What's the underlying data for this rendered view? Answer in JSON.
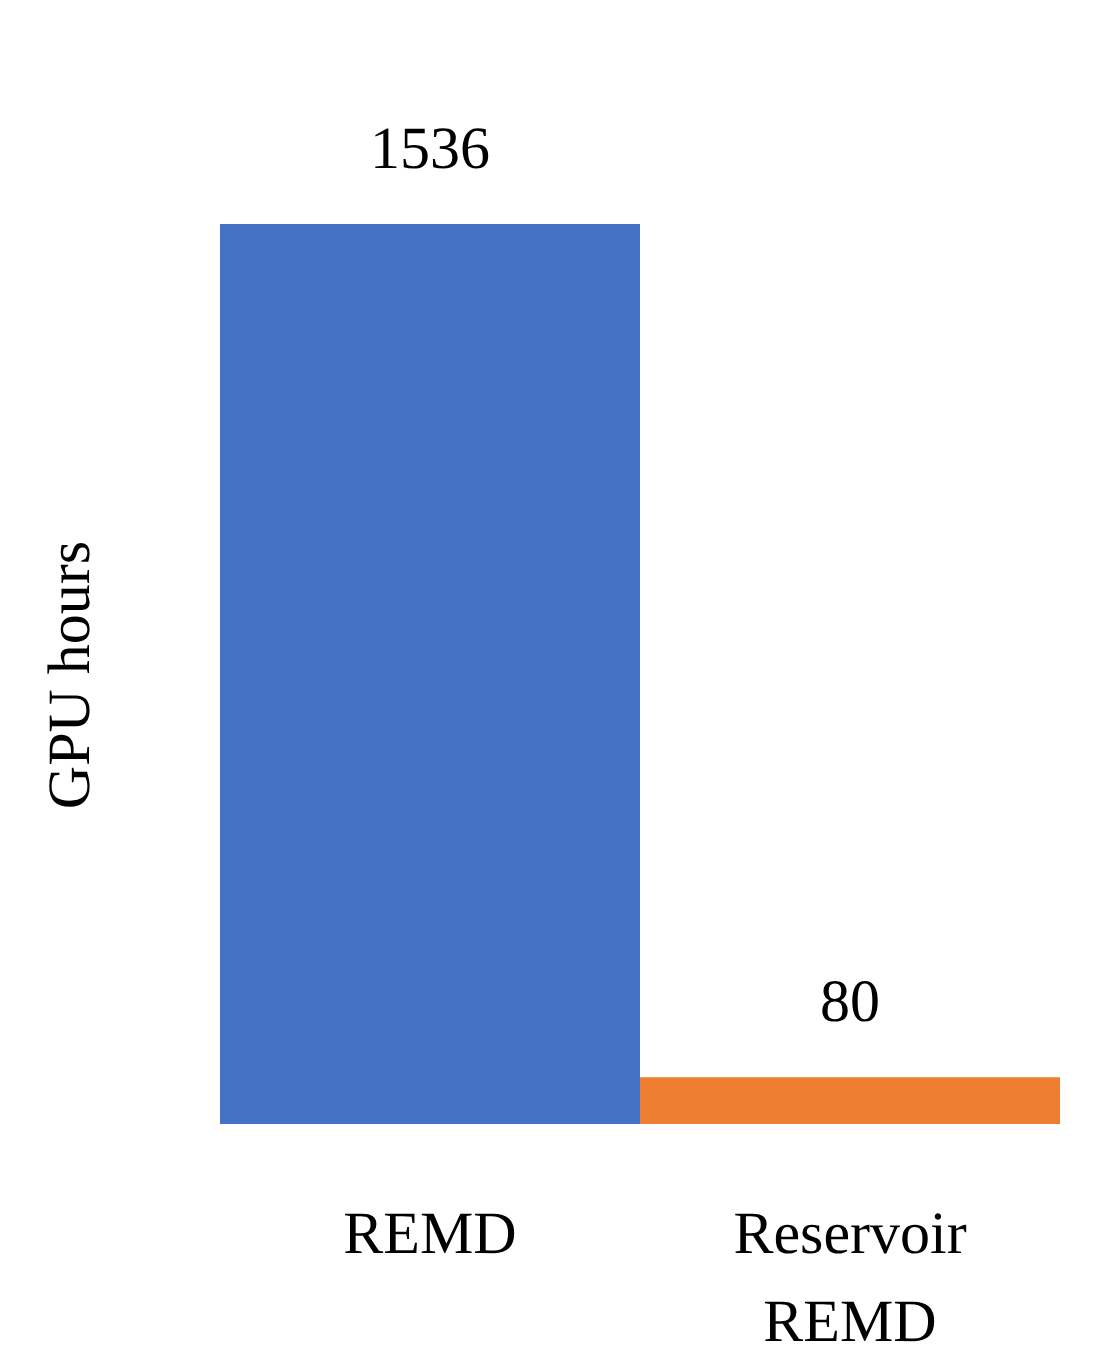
{
  "chart_data": {
    "type": "bar",
    "ylabel": "GPU hours",
    "categories": [
      "REMD",
      "Reservoir\nREMD"
    ],
    "values": [
      1536,
      80
    ],
    "colors": [
      "#4472c4",
      "#ed7d31"
    ],
    "data_labels": true
  }
}
